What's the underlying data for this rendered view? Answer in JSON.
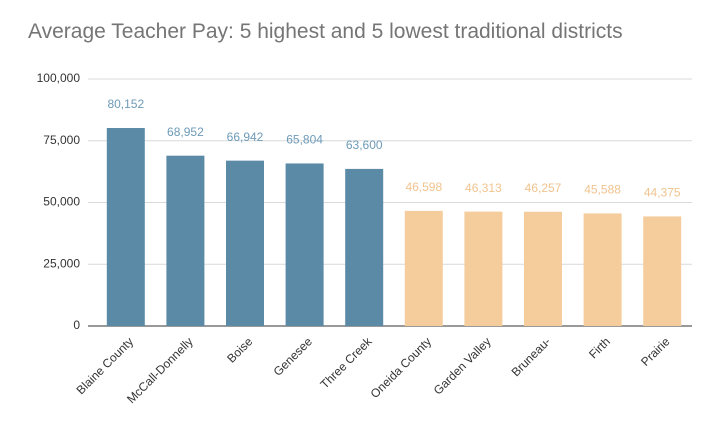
{
  "chart_data": {
    "type": "bar",
    "title": "Average Teacher Pay: 5 highest and 5 lowest traditional districts",
    "categories": [
      "Blaine County",
      "McCall-Donnelly",
      "Boise",
      "Genesee",
      "Three Creek",
      "Oneida County",
      "Garden Valley",
      "Bruneau-",
      "Firth",
      "Prairie"
    ],
    "values": [
      80152,
      68952,
      66942,
      65804,
      63600,
      46598,
      46313,
      46257,
      45588,
      44375
    ],
    "value_labels": [
      "80,152",
      "68,952",
      "66,942",
      "65,804",
      "63,600",
      "46,598",
      "46,313",
      "46,257",
      "45,588",
      "44,375"
    ],
    "colors": [
      "#5a8aa6",
      "#5a8aa6",
      "#5a8aa6",
      "#5a8aa6",
      "#5a8aa6",
      "#f5cd9c",
      "#f5cd9c",
      "#f5cd9c",
      "#f5cd9c",
      "#f5cd9c"
    ],
    "label_colors": [
      "#6d9ab8",
      "#6d9ab8",
      "#6d9ab8",
      "#6d9ab8",
      "#6d9ab8",
      "#f0c38e",
      "#f0c38e",
      "#f0c38e",
      "#f0c38e",
      "#f0c38e"
    ],
    "ylim": [
      0,
      100000
    ],
    "yticks": [
      0,
      {
        "value": 25000,
        "label": "25,000"
      },
      {
        "value": 50000,
        "label": "50,000"
      },
      {
        "value": 75000,
        "label": "75,000"
      },
      {
        "value": 100000,
        "label": "100,000"
      }
    ],
    "grid": true
  }
}
